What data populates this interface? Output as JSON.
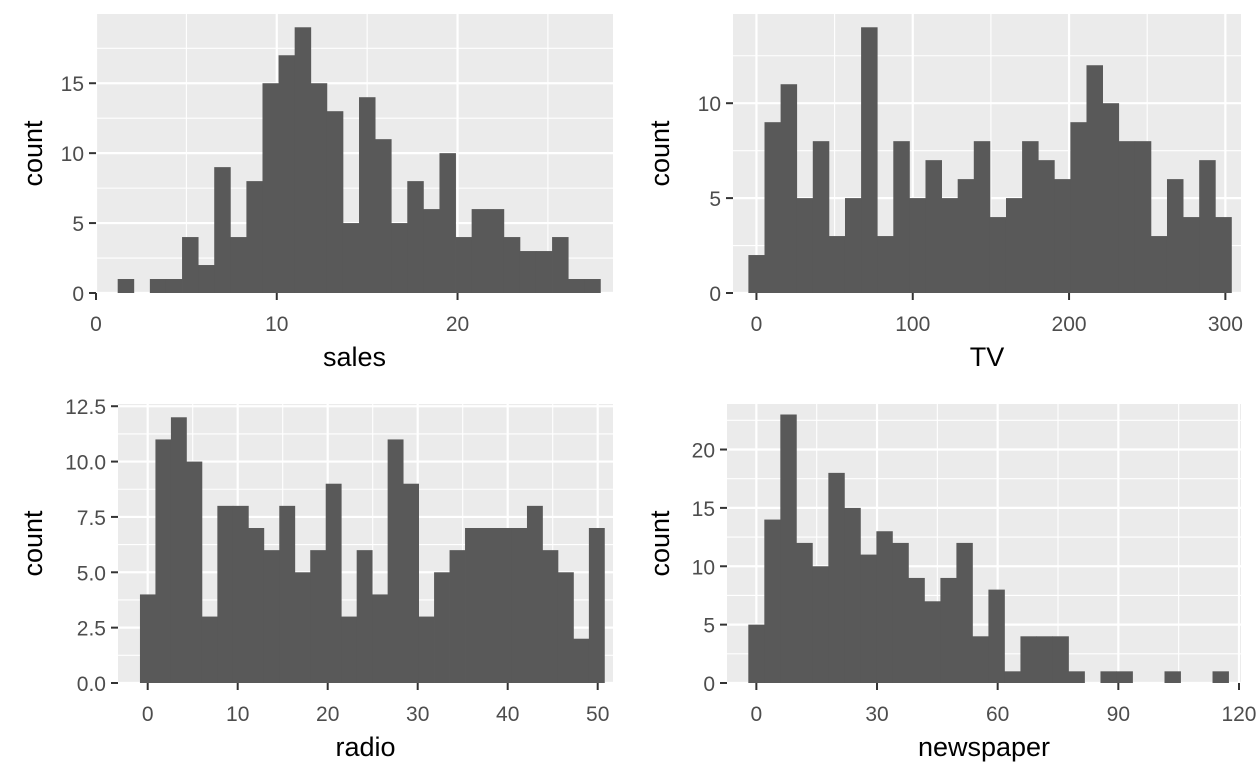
{
  "chart_data": [
    {
      "type": "bar",
      "xlabel": "sales",
      "ylabel": "count",
      "xlim": [
        0,
        28.6
      ],
      "ylim": [
        0,
        19.95
      ],
      "xticks": [
        0,
        10,
        20
      ],
      "yticks": [
        0,
        5,
        10,
        15
      ],
      "xtick_labels": [
        "0",
        "10",
        "20"
      ],
      "ytick_labels": [
        "0",
        "5",
        "10",
        "15"
      ],
      "bin_start": 1.2,
      "bin_width": 0.89,
      "counts": [
        1,
        0,
        1,
        1,
        4,
        2,
        9,
        4,
        8,
        15,
        17,
        19,
        15,
        13,
        5,
        14,
        11,
        5,
        8,
        6,
        10,
        4,
        6,
        6,
        4,
        3,
        3,
        4,
        1,
        1
      ]
    },
    {
      "type": "bar",
      "xlabel": "TV",
      "ylabel": "count",
      "xlim": [
        -15,
        310
      ],
      "ylim": [
        0,
        14.7
      ],
      "xticks": [
        0,
        100,
        200,
        300
      ],
      "yticks": [
        0,
        5,
        10
      ],
      "xtick_labels": [
        "0",
        "100",
        "200",
        "300"
      ],
      "ytick_labels": [
        "0",
        "5",
        "10"
      ],
      "bin_start": -5.15,
      "bin_width": 10.3,
      "counts": [
        2,
        9,
        11,
        5,
        8,
        3,
        5,
        14,
        3,
        8,
        5,
        7,
        5,
        6,
        8,
        4,
        5,
        8,
        7,
        6,
        9,
        12,
        10,
        8,
        8,
        3,
        6,
        4,
        7,
        4
      ]
    },
    {
      "type": "bar",
      "xlabel": "radio",
      "ylabel": "count",
      "xlim": [
        -3.3,
        51.7
      ],
      "ylim": [
        0,
        12.6
      ],
      "xticks": [
        0,
        10,
        20,
        30,
        40,
        50
      ],
      "yticks": [
        0,
        2.5,
        5,
        7.5,
        10,
        12.5
      ],
      "xtick_labels": [
        "0",
        "10",
        "20",
        "30",
        "40",
        "50"
      ],
      "ytick_labels": [
        "0.0",
        "2.5",
        "5.0",
        "7.5",
        "10.0",
        "12.5"
      ],
      "bin_start": -0.86,
      "bin_width": 1.72,
      "counts": [
        4,
        11,
        12,
        10,
        3,
        8,
        8,
        7,
        6,
        8,
        5,
        6,
        9,
        3,
        6,
        4,
        11,
        9,
        3,
        5,
        6,
        7,
        7,
        7,
        7,
        8,
        6,
        5,
        2,
        7
      ]
    },
    {
      "type": "bar",
      "xlabel": "newspaper",
      "ylabel": "count",
      "xlim": [
        -7.3,
        120.5
      ],
      "ylim": [
        0,
        23.9
      ],
      "xticks": [
        0,
        30,
        60,
        90,
        120
      ],
      "yticks": [
        0,
        5,
        10,
        15,
        20
      ],
      "xtick_labels": [
        "0",
        "30",
        "60",
        "90",
        "120"
      ],
      "ytick_labels": [
        "0",
        "5",
        "10",
        "15",
        "20"
      ],
      "bin_start": -2.0,
      "bin_width": 3.98,
      "counts": [
        5,
        14,
        23,
        12,
        10,
        18,
        15,
        11,
        13,
        12,
        9,
        7,
        9,
        12,
        4,
        8,
        1,
        4,
        4,
        4,
        1,
        0,
        1,
        1,
        0,
        0,
        1,
        0,
        0,
        1
      ]
    }
  ],
  "colors": {
    "panel_background": "#ebebeb",
    "grid": "#ffffff",
    "bar_fill": "#595959",
    "tick_label": "#4d4d4d",
    "axis_title": "#000000"
  }
}
